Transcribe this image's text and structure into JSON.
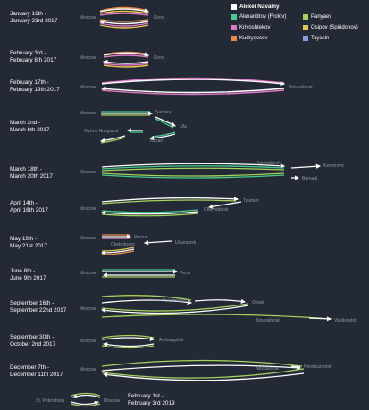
{
  "legend": {
    "title": "Alexei Navalny",
    "items": [
      {
        "name": "Alexandrov (Frolov)",
        "color": "#47c98d"
      },
      {
        "name": "Panyaev",
        "color": "#a6d15b"
      },
      {
        "name": "Krivoshtekov",
        "color": "#e177c6"
      },
      {
        "name": "Osipov (Spiridonov)",
        "color": "#e5c64a"
      },
      {
        "name": "Kudryavcev",
        "color": "#e98b47"
      },
      {
        "name": "Tayakin",
        "color": "#8c9be8"
      }
    ]
  },
  "trips": [
    {
      "dates": "January 16th -\nJanuary 23rd 2017",
      "cities": [
        "Moscow",
        "Kirov"
      ]
    },
    {
      "dates": "February 3rd -\nFebruary 8th 2017",
      "cities": [
        "Moscow",
        "Kirov"
      ]
    },
    {
      "dates": "February 17th -\nFebruary 19th 2017",
      "cities": [
        "Moscow",
        "Novosibirsk"
      ]
    },
    {
      "dates": "March 2nd -\nMarch 6th 2017",
      "cities": [
        "Moscow",
        "Samara",
        "Ufa",
        "Nizhny Novgorod",
        "Kazan"
      ]
    },
    {
      "dates": "March 18th -\nMarch 20th 2017",
      "cities": [
        "Moscow",
        "Novosibirsk",
        "Kemerovo",
        "Barnaul"
      ]
    },
    {
      "dates": "April 14th -\nApril 16th 2017",
      "cities": [
        "Moscow",
        "Tyumen",
        "Chelyabinsk"
      ]
    },
    {
      "dates": "May 19th -\nMay 21st 2017",
      "cities": [
        "Moscow",
        "Penza",
        "Cheboksary",
        "Ulyanovsk"
      ]
    },
    {
      "dates": "June 8th -\nJune 9th 2017",
      "cities": [
        "Moscow",
        "Perm"
      ]
    },
    {
      "dates": "September 16th -\nSeptember 22nd 2017",
      "cities": [
        "Moscow",
        "Yekaterinburg",
        "Omsk",
        "Novosibirsk",
        "Vladivostok"
      ]
    },
    {
      "dates": "September 30th -\nOctober 2nd 2017",
      "cities": [
        "Moscow",
        "Arkhangelsk"
      ]
    },
    {
      "dates": "December 7th -\nDecember 11th 2017",
      "cities": [
        "Moscow",
        "Novosibirsk",
        "Novokuznetsk"
      ]
    },
    {
      "dates": "February 1st -\nFebruary 3rd 2019",
      "cities": [
        "St. Petersburg",
        "Moscow"
      ]
    }
  ]
}
